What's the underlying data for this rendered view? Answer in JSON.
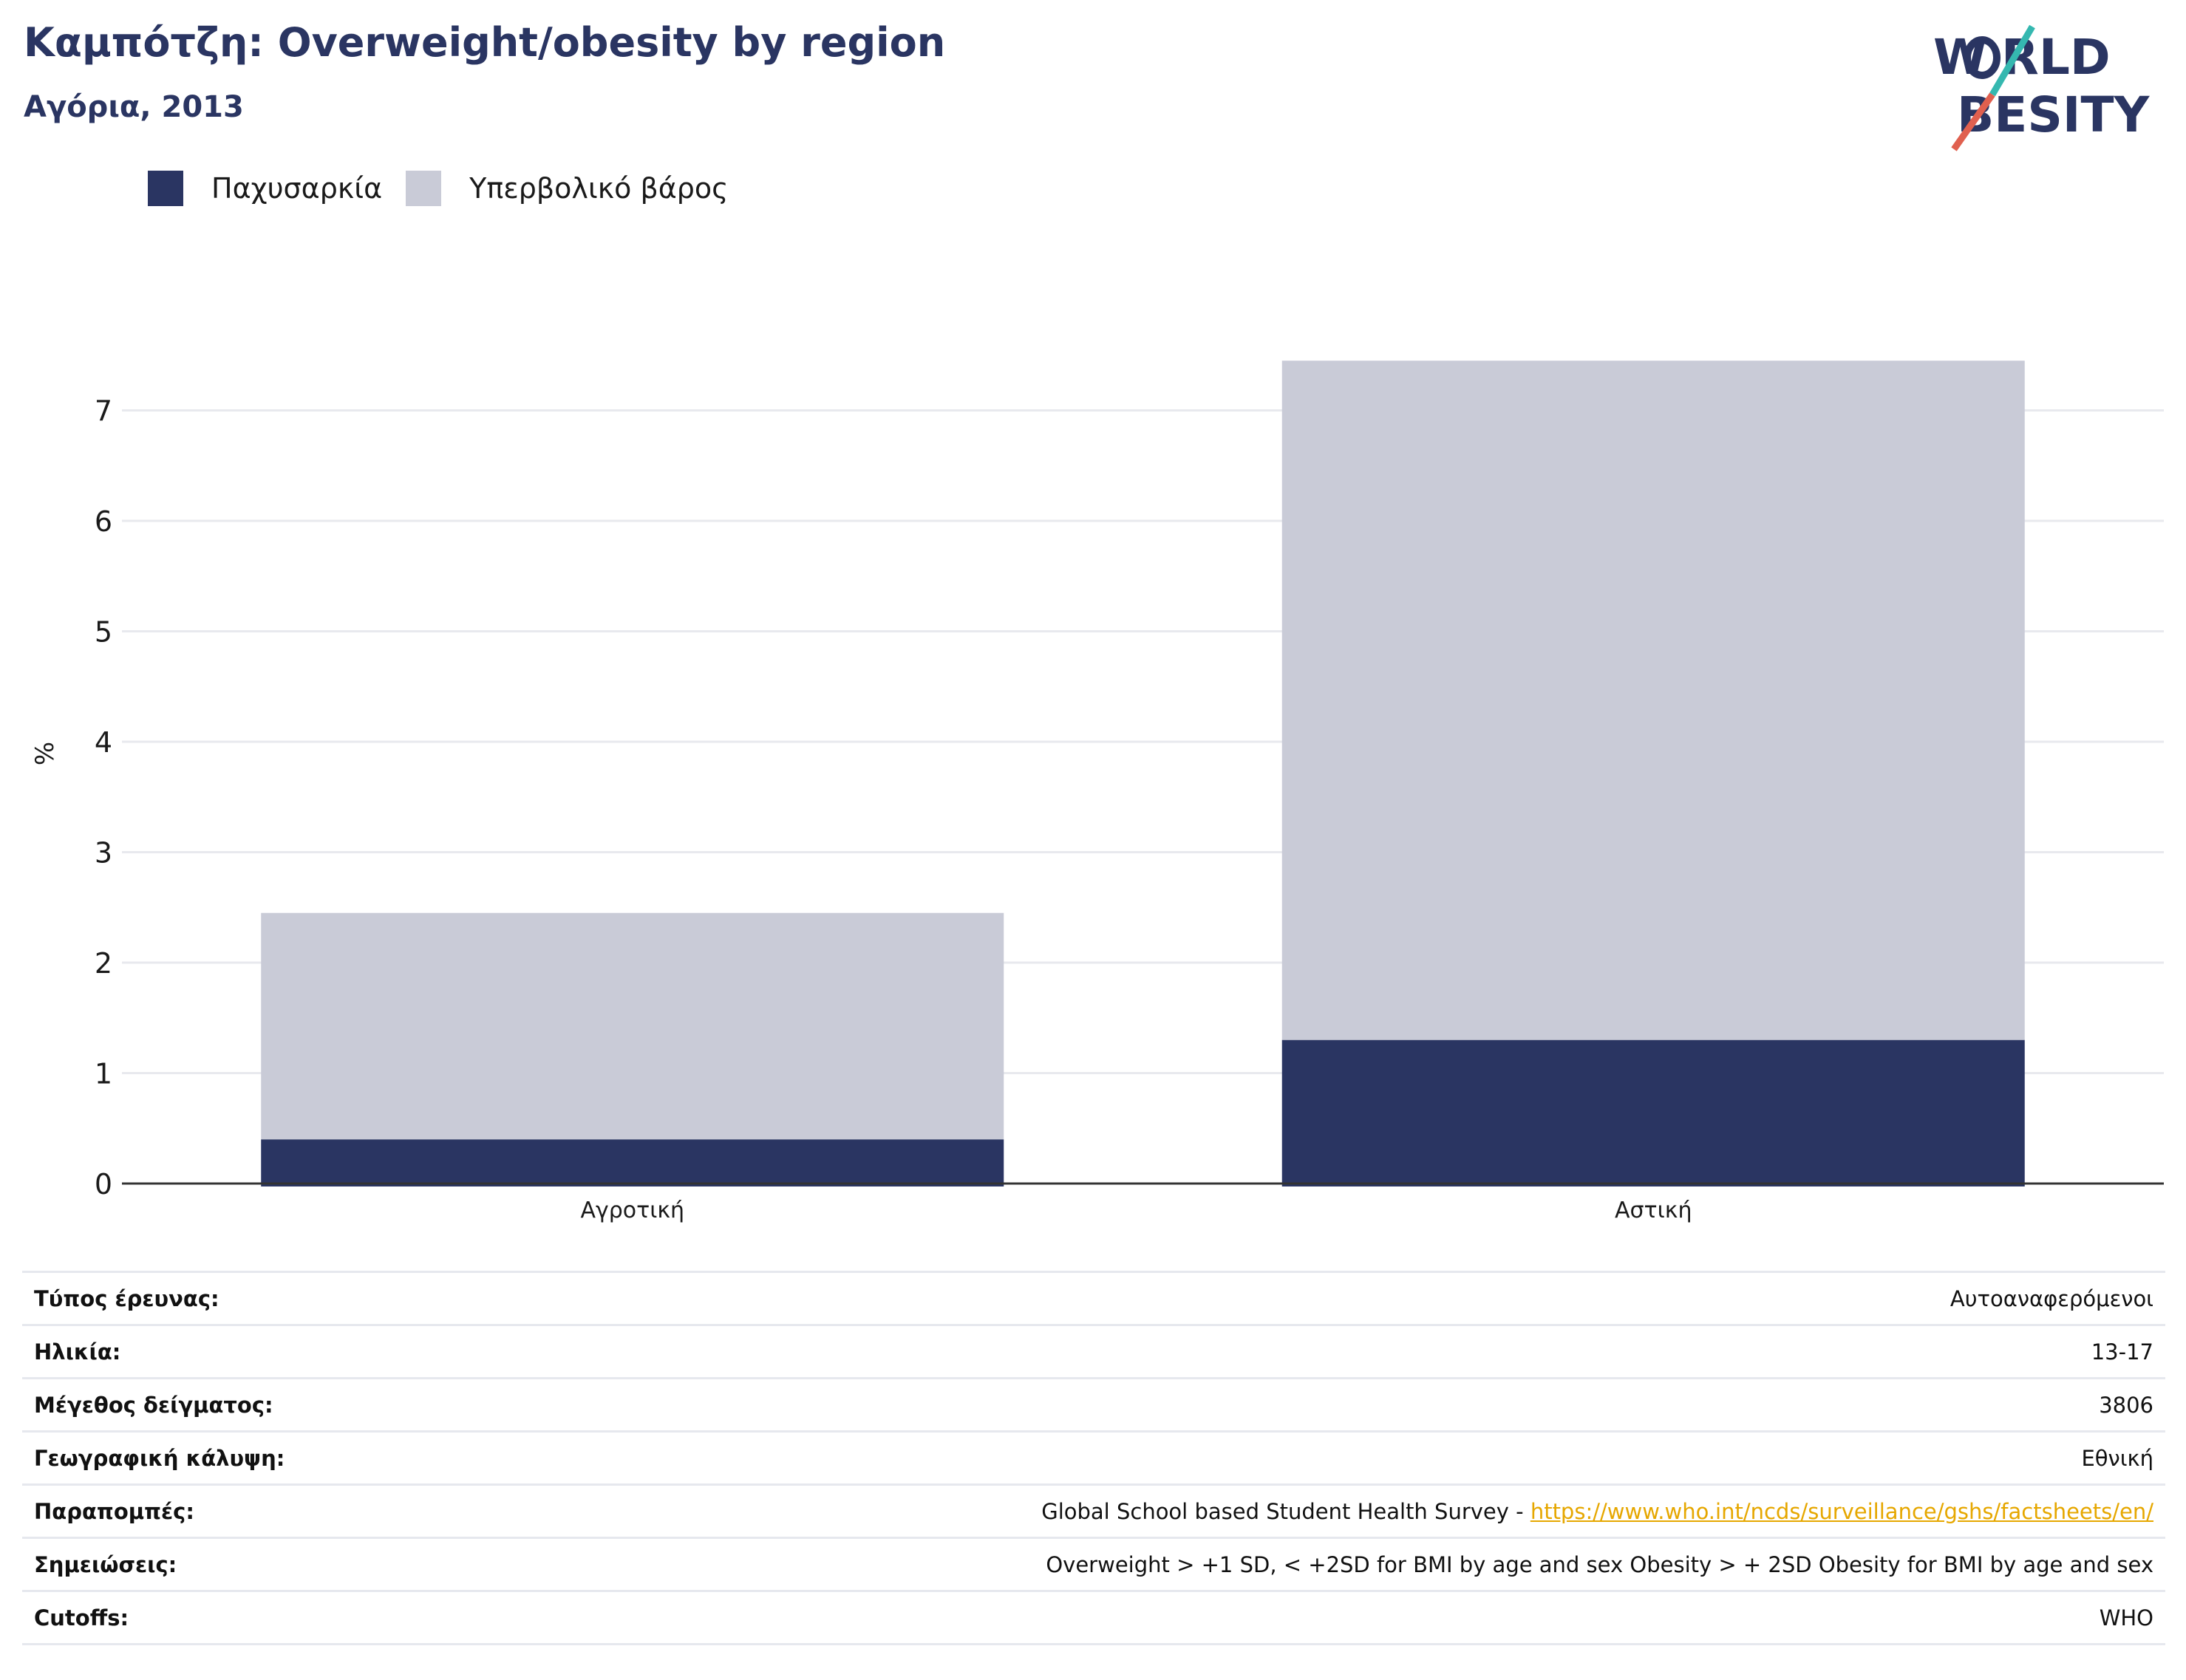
{
  "header": {
    "title": "Καμπότζη: Overweight/obesity by region",
    "subtitle": "Αγόρια, 2013",
    "logo_text": "WORLD OBESITY"
  },
  "colors": {
    "obesity": "#2a3562",
    "overweight": "#c9cbd7",
    "title": "#2a3562",
    "link": "#e6a700",
    "logo_teal": "#35b8b0",
    "logo_red": "#e0604f"
  },
  "chart_data": {
    "type": "bar",
    "stacked": true,
    "categories": [
      "Αγροτική",
      "Αστική"
    ],
    "series": [
      {
        "name": "Παχυσαρκία",
        "values": [
          0.4,
          1.3
        ]
      },
      {
        "name": "Υπερβολικό βάρος",
        "values": [
          2.05,
          6.15
        ]
      }
    ],
    "ylabel": "%",
    "yticks": [
      0,
      1,
      2,
      3,
      4,
      5,
      6,
      7
    ],
    "ylim": [
      0,
      7.45
    ],
    "grid": true,
    "legend": "top-left"
  },
  "info": {
    "rows": [
      {
        "label": "Τύπος έρευνας:",
        "value": "Αυτοαναφερόμενοι"
      },
      {
        "label": "Ηλικία:",
        "value": "13-17"
      },
      {
        "label": "Μέγεθος δείγματος:",
        "value": "3806"
      },
      {
        "label": "Γεωγραφική κάλυψη:",
        "value": "Εθνική"
      },
      {
        "label": "Παραπομπές:",
        "value": "Global School based Student Health Survey - ",
        "link": "https://www.who.int/ncds/surveillance/gshs/factsheets/en/"
      },
      {
        "label": "Σημειώσεις:",
        "value": "Overweight > +1 SD, < +2SD for BMI by age and sex Obesity > + 2SD Obesity for BMI by age and sex"
      },
      {
        "label": "Cutoffs:",
        "value": "WHO"
      }
    ]
  }
}
